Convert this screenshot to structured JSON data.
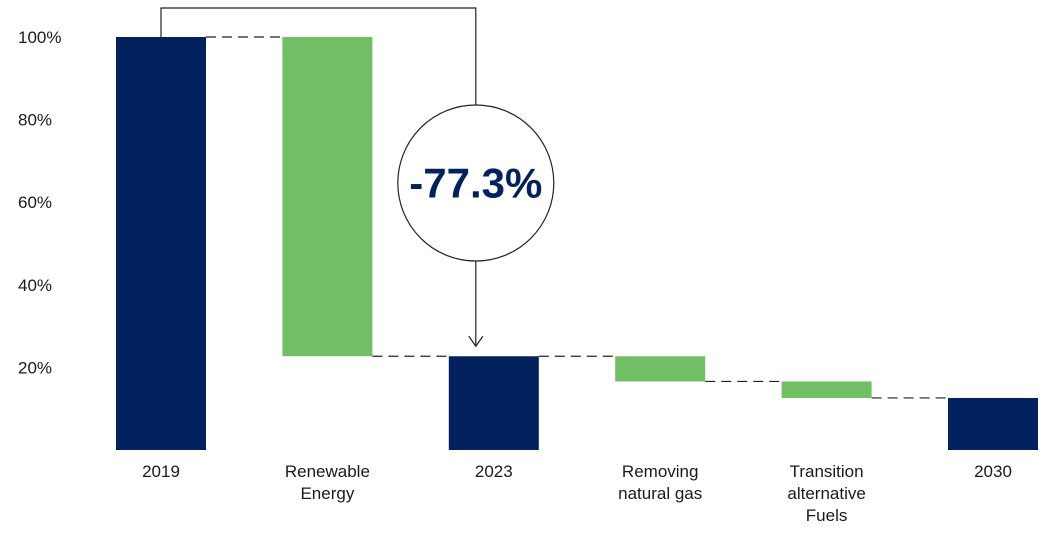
{
  "colors": {
    "dark": "#03215c",
    "green": "#71bf64",
    "line": "#222222",
    "text": "#1a1a1a"
  },
  "chart_data": {
    "type": "waterfall",
    "ylim": [
      0,
      100
    ],
    "ytick_labels": [
      "20%",
      "40%",
      "60%",
      "80%",
      "100%"
    ],
    "ytick_values": [
      20,
      40,
      60,
      80,
      100
    ],
    "steps": [
      {
        "label": [
          "2019"
        ],
        "kind": "total",
        "start": 0,
        "end": 100
      },
      {
        "label": [
          "Renewable",
          "Energy"
        ],
        "kind": "decrease",
        "start": 100,
        "end": 22.7
      },
      {
        "label": [
          "2023"
        ],
        "kind": "total",
        "start": 0,
        "end": 22.7
      },
      {
        "label": [
          "Removing",
          "natural gas"
        ],
        "kind": "decrease",
        "start": 22.7,
        "end": 16.6
      },
      {
        "label": [
          "Transition",
          "alternative",
          "Fuels"
        ],
        "kind": "decrease",
        "start": 16.6,
        "end": 12.6
      },
      {
        "label": [
          "2030"
        ],
        "kind": "total",
        "start": 0,
        "end": 12.6
      }
    ],
    "annotation": {
      "text": "-77.3%",
      "from_step": 0,
      "to_step": 2
    }
  }
}
